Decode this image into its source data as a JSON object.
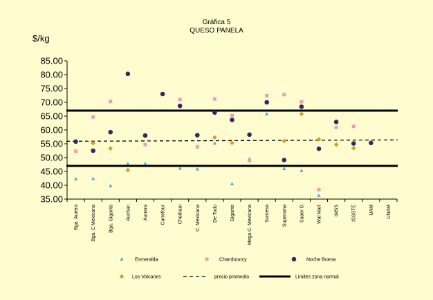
{
  "chart_data": {
    "type": "scatter",
    "title": "Gráfica 5",
    "subtitle": "QUESO PANELA",
    "ylabel": "$/kg",
    "xlabel": "",
    "ylim": [
      35,
      85
    ],
    "yticks": [
      "35.00",
      "40.00",
      "45.00",
      "50.00",
      "55.00",
      "60.00",
      "65.00",
      "70.00",
      "75.00",
      "80.00",
      "85.00"
    ],
    "categories": [
      "Bga. Aurera",
      "Bga. C Mexicana",
      "Bga. Gigante",
      "Auchan",
      "Aurrera",
      "Carrefour",
      "Chedraui",
      "C. Mexicana",
      "De Todo",
      "Gigante",
      "Mega C. Mexicana",
      "Sumesa",
      "Superama",
      "Super G",
      "Wal Mart",
      "IMSS",
      "ISSSTE",
      "UAM",
      "UNAM"
    ],
    "series": [
      {
        "name": "Esmeralda",
        "marker": "triangle",
        "color": "#4aa8d8",
        "values": [
          42.3,
          42.4,
          39.8,
          47.8,
          47.8,
          null,
          46.1,
          45.8,
          55.2,
          40.5,
          49.5,
          65.8,
          46.0,
          45.3,
          36.3,
          null,
          null,
          null,
          null
        ]
      },
      {
        "name": "Chambourcy",
        "marker": "square",
        "color": "#e8a0b8",
        "values": [
          52.3,
          64.7,
          70.3,
          null,
          54.7,
          null,
          71.0,
          53.9,
          71.2,
          65.2,
          48.9,
          72.4,
          72.8,
          70.2,
          38.4,
          60.9,
          61.3,
          null,
          null
        ]
      },
      {
        "name": "Noche Buena",
        "marker": "circle",
        "color": "#35285e",
        "values": [
          55.8,
          52.5,
          59.2,
          80.3,
          58.0,
          73.0,
          68.7,
          58.1,
          66.3,
          63.6,
          58.3,
          70.0,
          49.1,
          68.4,
          53.2,
          62.9,
          55.1,
          55.3,
          null
        ]
      },
      {
        "name": "Los Volcanes",
        "marker": "diamond",
        "color": "#d99a22",
        "values": [
          null,
          55.2,
          53.3,
          45.5,
          null,
          null,
          null,
          null,
          57.3,
          55.3,
          null,
          null,
          56.0,
          65.8,
          56.6,
          54.7,
          53.4,
          null,
          null
        ]
      }
    ],
    "reference_lines": [
      {
        "name": "precio promedio",
        "style": "dashed",
        "y_start": 55.9,
        "y_end": 56.4
      },
      {
        "name": "Limites zona normal",
        "style": "solid",
        "y": 67.0
      },
      {
        "name": "Limites zona normal",
        "style": "solid",
        "y": 47.0
      }
    ],
    "legend": {
      "placement": "bottom",
      "items": [
        "Esmeralda",
        "Chambourcy",
        "Noche Buena",
        "Los Volcanes",
        "precio promedio",
        "Limites zona normal"
      ]
    }
  }
}
